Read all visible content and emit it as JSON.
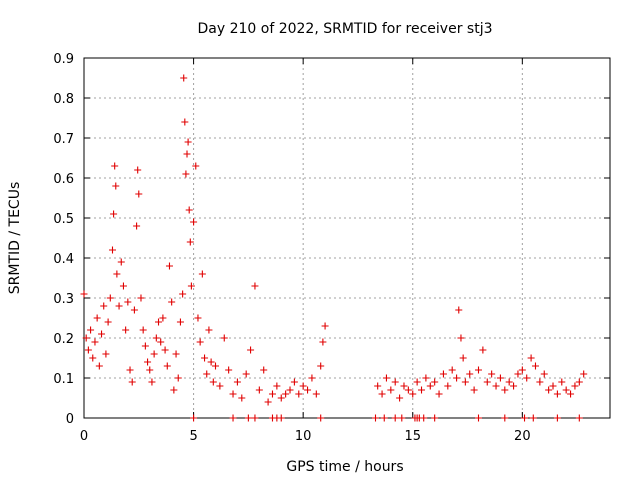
{
  "chart_data": {
    "type": "scatter",
    "title": "Day 210 of 2022, SRMTID for receiver stj3",
    "xlabel": "GPS time / hours",
    "ylabel": "SRMTID / TECUs",
    "xlim": [
      0,
      24
    ],
    "ylim": [
      0,
      0.9
    ],
    "x_ticks": [
      0,
      5,
      10,
      15,
      20
    ],
    "x_tick_labels": [
      "0",
      "5",
      "10",
      "15",
      "20"
    ],
    "y_ticks": [
      0,
      0.1,
      0.2,
      0.3,
      0.4,
      0.5,
      0.6,
      0.7,
      0.8,
      0.9
    ],
    "y_tick_labels": [
      "0",
      "0.1",
      "0.2",
      "0.3",
      "0.4",
      "0.5",
      "0.6",
      "0.7",
      "0.8",
      "0.9"
    ],
    "grid": true,
    "marker": "+",
    "color": "#e00000",
    "series": [
      {
        "name": "SRMTID",
        "points": [
          [
            0.0,
            0.31
          ],
          [
            0.1,
            0.2
          ],
          [
            0.2,
            0.17
          ],
          [
            0.3,
            0.22
          ],
          [
            0.4,
            0.15
          ],
          [
            0.5,
            0.19
          ],
          [
            0.6,
            0.25
          ],
          [
            0.7,
            0.13
          ],
          [
            0.8,
            0.21
          ],
          [
            0.9,
            0.28
          ],
          [
            1.0,
            0.16
          ],
          [
            1.1,
            0.24
          ],
          [
            1.2,
            0.3
          ],
          [
            1.3,
            0.42
          ],
          [
            1.35,
            0.51
          ],
          [
            1.4,
            0.63
          ],
          [
            1.45,
            0.58
          ],
          [
            1.5,
            0.36
          ],
          [
            1.6,
            0.28
          ],
          [
            1.7,
            0.39
          ],
          [
            1.8,
            0.33
          ],
          [
            1.9,
            0.22
          ],
          [
            2.0,
            0.29
          ],
          [
            2.1,
            0.12
          ],
          [
            2.2,
            0.09
          ],
          [
            2.3,
            0.27
          ],
          [
            2.4,
            0.48
          ],
          [
            2.45,
            0.62
          ],
          [
            2.5,
            0.56
          ],
          [
            2.6,
            0.3
          ],
          [
            2.7,
            0.22
          ],
          [
            2.8,
            0.18
          ],
          [
            2.9,
            0.14
          ],
          [
            3.0,
            0.12
          ],
          [
            3.1,
            0.09
          ],
          [
            3.2,
            0.16
          ],
          [
            3.3,
            0.2
          ],
          [
            3.4,
            0.24
          ],
          [
            3.5,
            0.19
          ],
          [
            3.6,
            0.25
          ],
          [
            3.7,
            0.17
          ],
          [
            3.8,
            0.13
          ],
          [
            3.9,
            0.38
          ],
          [
            4.0,
            0.29
          ],
          [
            4.1,
            0.07
          ],
          [
            4.2,
            0.16
          ],
          [
            4.3,
            0.1
          ],
          [
            4.4,
            0.24
          ],
          [
            4.5,
            0.31
          ],
          [
            4.55,
            0.85
          ],
          [
            4.6,
            0.74
          ],
          [
            4.65,
            0.61
          ],
          [
            4.7,
            0.66
          ],
          [
            4.75,
            0.69
          ],
          [
            4.8,
            0.52
          ],
          [
            4.85,
            0.44
          ],
          [
            4.9,
            0.33
          ],
          [
            5.0,
            0.49
          ],
          [
            5.1,
            0.63
          ],
          [
            5.2,
            0.25
          ],
          [
            5.3,
            0.19
          ],
          [
            5.4,
            0.36
          ],
          [
            5.5,
            0.15
          ],
          [
            5.6,
            0.11
          ],
          [
            5.7,
            0.22
          ],
          [
            5.8,
            0.14
          ],
          [
            5.9,
            0.09
          ],
          [
            6.0,
            0.13
          ],
          [
            6.2,
            0.08
          ],
          [
            6.4,
            0.2
          ],
          [
            6.6,
            0.12
          ],
          [
            6.8,
            0.06
          ],
          [
            7.0,
            0.09
          ],
          [
            7.2,
            0.05
          ],
          [
            7.4,
            0.11
          ],
          [
            7.6,
            0.17
          ],
          [
            7.8,
            0.33
          ],
          [
            8.0,
            0.07
          ],
          [
            8.2,
            0.12
          ],
          [
            8.4,
            0.04
          ],
          [
            8.6,
            0.06
          ],
          [
            8.8,
            0.08
          ],
          [
            9.0,
            0.05
          ],
          [
            9.2,
            0.06
          ],
          [
            9.4,
            0.07
          ],
          [
            9.6,
            0.09
          ],
          [
            9.8,
            0.06
          ],
          [
            10.0,
            0.08
          ],
          [
            10.2,
            0.07
          ],
          [
            10.4,
            0.1
          ],
          [
            10.6,
            0.06
          ],
          [
            10.8,
            0.13
          ],
          [
            10.9,
            0.19
          ],
          [
            11.0,
            0.23
          ],
          [
            13.4,
            0.08
          ],
          [
            13.6,
            0.06
          ],
          [
            13.8,
            0.1
          ],
          [
            14.0,
            0.07
          ],
          [
            14.2,
            0.09
          ],
          [
            14.4,
            0.05
          ],
          [
            14.6,
            0.08
          ],
          [
            14.8,
            0.07
          ],
          [
            15.0,
            0.06
          ],
          [
            15.2,
            0.09
          ],
          [
            15.4,
            0.07
          ],
          [
            15.6,
            0.1
          ],
          [
            15.8,
            0.08
          ],
          [
            16.0,
            0.09
          ],
          [
            16.2,
            0.06
          ],
          [
            16.4,
            0.11
          ],
          [
            16.6,
            0.08
          ],
          [
            16.8,
            0.12
          ],
          [
            17.0,
            0.1
          ],
          [
            17.1,
            0.27
          ],
          [
            17.2,
            0.2
          ],
          [
            17.3,
            0.15
          ],
          [
            17.4,
            0.09
          ],
          [
            17.6,
            0.11
          ],
          [
            17.8,
            0.07
          ],
          [
            18.0,
            0.12
          ],
          [
            18.2,
            0.17
          ],
          [
            18.4,
            0.09
          ],
          [
            18.6,
            0.11
          ],
          [
            18.8,
            0.08
          ],
          [
            19.0,
            0.1
          ],
          [
            19.2,
            0.07
          ],
          [
            19.4,
            0.09
          ],
          [
            19.6,
            0.08
          ],
          [
            19.8,
            0.11
          ],
          [
            20.0,
            0.12
          ],
          [
            20.2,
            0.1
          ],
          [
            20.4,
            0.15
          ],
          [
            20.6,
            0.13
          ],
          [
            20.8,
            0.09
          ],
          [
            21.0,
            0.11
          ],
          [
            21.2,
            0.07
          ],
          [
            21.4,
            0.08
          ],
          [
            21.6,
            0.06
          ],
          [
            21.8,
            0.09
          ],
          [
            22.0,
            0.07
          ],
          [
            22.2,
            0.06
          ],
          [
            22.4,
            0.08
          ],
          [
            22.6,
            0.09
          ],
          [
            22.8,
            0.11
          ],
          [
            5.0,
            0.0
          ],
          [
            6.8,
            0.0
          ],
          [
            7.5,
            0.0
          ],
          [
            7.8,
            0.0
          ],
          [
            8.6,
            0.0
          ],
          [
            8.8,
            0.0
          ],
          [
            9.0,
            0.0
          ],
          [
            10.8,
            0.0
          ],
          [
            13.3,
            0.0
          ],
          [
            13.7,
            0.0
          ],
          [
            14.2,
            0.0
          ],
          [
            14.5,
            0.0
          ],
          [
            15.1,
            0.0
          ],
          [
            15.2,
            0.0
          ],
          [
            15.3,
            0.0
          ],
          [
            15.5,
            0.0
          ],
          [
            16.0,
            0.0
          ],
          [
            18.0,
            0.0
          ],
          [
            19.2,
            0.0
          ],
          [
            20.1,
            0.0
          ],
          [
            20.5,
            0.0
          ],
          [
            21.6,
            0.0
          ],
          [
            22.6,
            0.0
          ]
        ]
      }
    ]
  }
}
